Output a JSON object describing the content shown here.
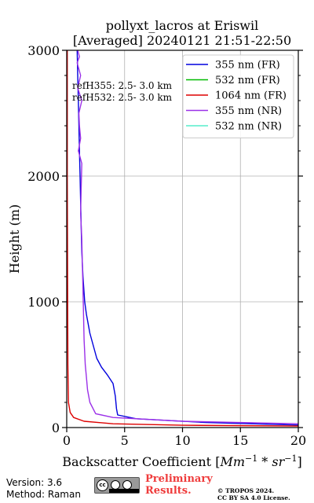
{
  "chart_data": {
    "type": "line",
    "title": "pollyxt_lacros at Eriswil",
    "subtitle": "[Averaged] 20240121 21:51-22:50",
    "xlabel": "Backscatter Coefficient [Mm⁻¹ * sr⁻¹]",
    "ylabel": "Height (m)",
    "xlim": [
      0,
      20
    ],
    "ylim": [
      0,
      3000
    ],
    "xticks": [
      "0",
      "5",
      "10",
      "15",
      "20"
    ],
    "yticks": [
      "0",
      "1000",
      "2000",
      "3000"
    ],
    "grid": true,
    "legend_position": "top-right",
    "annotations": [
      "refH355:  2.5- 3.0 km",
      "refH532:  2.5- 3.0 km"
    ],
    "series": [
      {
        "name": "355 nm (FR)",
        "color": "#0000dd",
        "x": [
          20,
          12,
          6,
          4.4,
          4.3,
          4.2,
          4.0,
          3.5,
          3.0,
          2.6,
          2.3,
          2.0,
          1.7,
          1.55,
          1.4,
          1.3,
          1.25,
          1.2,
          1.15,
          1.1,
          1.05,
          1.0,
          0.95,
          0.9
        ],
        "y": [
          20,
          40,
          70,
          100,
          150,
          250,
          350,
          420,
          480,
          550,
          650,
          750,
          900,
          1000,
          1200,
          1400,
          1600,
          1800,
          2000,
          2200,
          2400,
          2600,
          2800,
          3000
        ]
      },
      {
        "name": "532 nm (FR)",
        "color": "#00bb00",
        "x": [],
        "y": []
      },
      {
        "name": "1064 nm (FR)",
        "color": "#dd0000",
        "x": [
          20,
          10,
          4,
          1.5,
          0.6,
          0.3,
          0.15,
          0.1,
          0.08,
          0.05,
          0.05
        ],
        "y": [
          12,
          18,
          30,
          50,
          80,
          120,
          200,
          500,
          1000,
          2000,
          3000
        ]
      },
      {
        "name": "355 nm (NR)",
        "color": "#9b30e8",
        "x": [
          20,
          10,
          4,
          2.5,
          2.0,
          1.8,
          1.7,
          1.6,
          1.5,
          1.45,
          1.4,
          1.35,
          1.3,
          1.2,
          1.25,
          1.3,
          1.0,
          1.2,
          1.1,
          1.05,
          1.3,
          0.95,
          1.2,
          0.9,
          1.1,
          0.95
        ],
        "y": [
          30,
          50,
          80,
          110,
          200,
          300,
          400,
          500,
          700,
          900,
          1100,
          1300,
          1500,
          1700,
          1900,
          2100,
          2200,
          2300,
          2400,
          2500,
          2600,
          2700,
          2800,
          2900,
          2950,
          3000
        ]
      },
      {
        "name": "532 nm (NR)",
        "color": "#55eecc",
        "x": [],
        "y": []
      }
    ]
  },
  "footer": {
    "version": "Version: 3.6",
    "method": "Method: Raman",
    "preliminary": "Preliminary Results.",
    "copyright_line1": "© TROPOS 2024.",
    "copyright_line2": "CC BY SA 4.0 License.",
    "license_badge": "CC BY SA"
  }
}
